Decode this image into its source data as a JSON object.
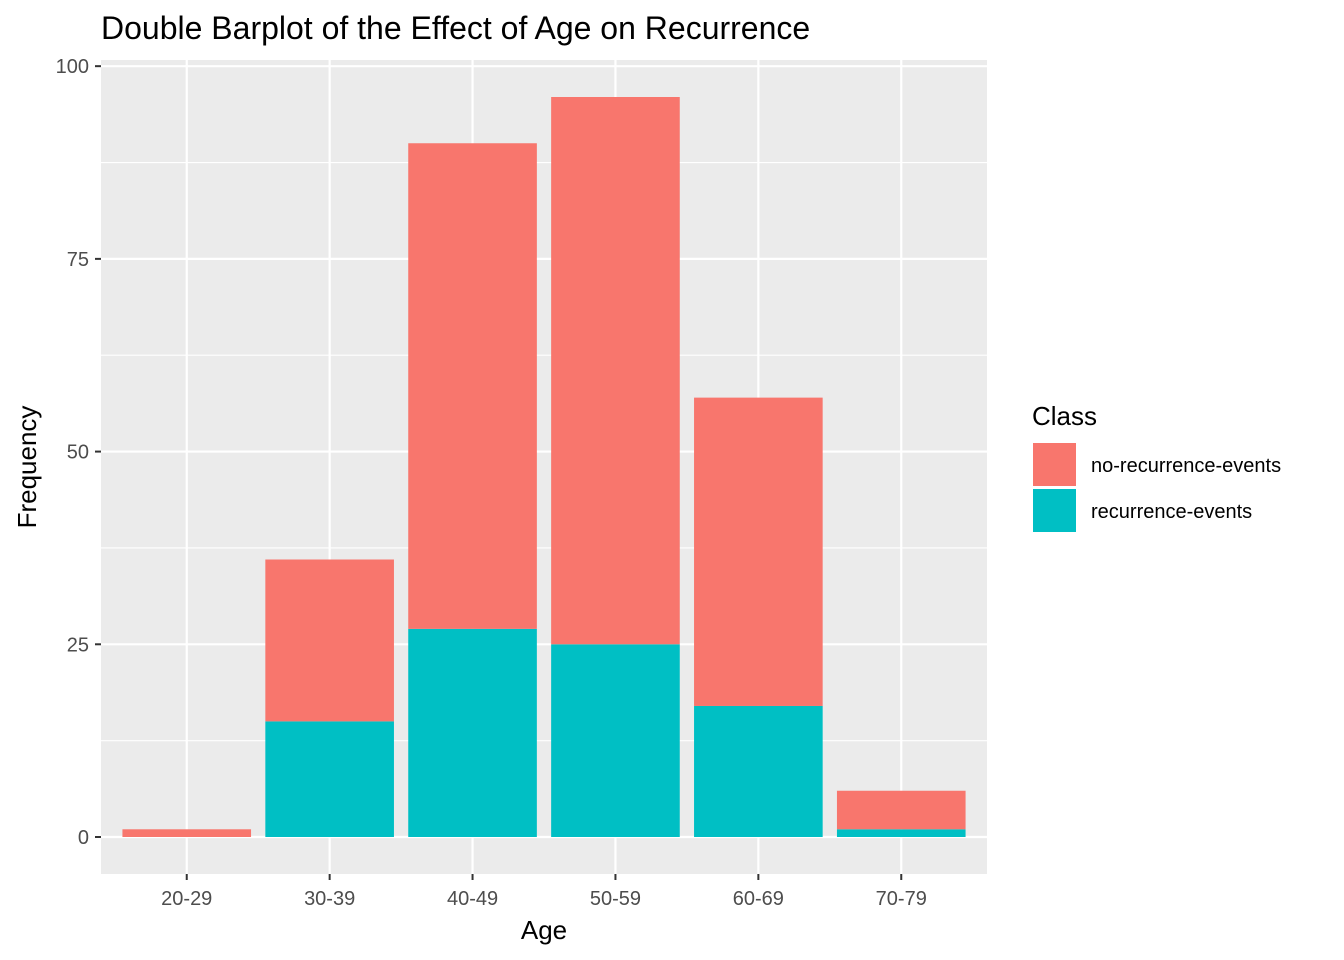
{
  "chart_data": {
    "type": "bar",
    "stacked": true,
    "title": "Double Barplot of the Effect of Age on Recurrence",
    "xlabel": "Age",
    "ylabel": "Frequency",
    "categories": [
      "20-29",
      "30-39",
      "40-49",
      "50-59",
      "60-69",
      "70-79"
    ],
    "series": [
      {
        "name": "no-recurrence-events",
        "color": "#F8766D",
        "values": [
          1,
          21,
          63,
          71,
          40,
          5
        ]
      },
      {
        "name": "recurrence-events",
        "color": "#00BFC4",
        "values": [
          0,
          15,
          27,
          25,
          17,
          1
        ]
      }
    ],
    "ylim": [
      -4.8,
      100.8
    ],
    "yticks": [
      0,
      25,
      50,
      75,
      100
    ],
    "yticks_minor": [
      12.5,
      37.5,
      62.5,
      87.5
    ],
    "grid": true,
    "legend": {
      "title": "Class",
      "position": "right"
    },
    "colors": {
      "panel": "#EBEBEB",
      "grid": "#FFFFFF"
    }
  }
}
